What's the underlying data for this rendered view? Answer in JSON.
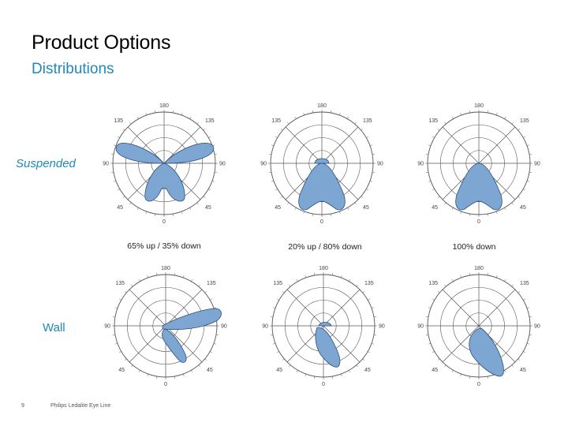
{
  "header": {
    "title": "Product Options",
    "subtitle": "Distributions"
  },
  "rows": {
    "suspended_label": "Suspended",
    "wall_label": "Wall"
  },
  "captions": [
    "65% up / 35% down",
    "20% up / 80% down",
    "100% down"
  ],
  "angle_labels": {
    "top": "180",
    "bottom": "0",
    "left": "90",
    "right": "90",
    "top_left": "135",
    "top_right": "135",
    "bottom_left": "45",
    "bottom_right": "45"
  },
  "footer": {
    "page_number": "9",
    "text": "Philips Ledalite Eye Line"
  },
  "colors": {
    "accent": "#1f88b8",
    "lobe_fill": "#7ea6d3",
    "lobe_stroke": "#2b4f7a",
    "grid": "#555555"
  }
}
